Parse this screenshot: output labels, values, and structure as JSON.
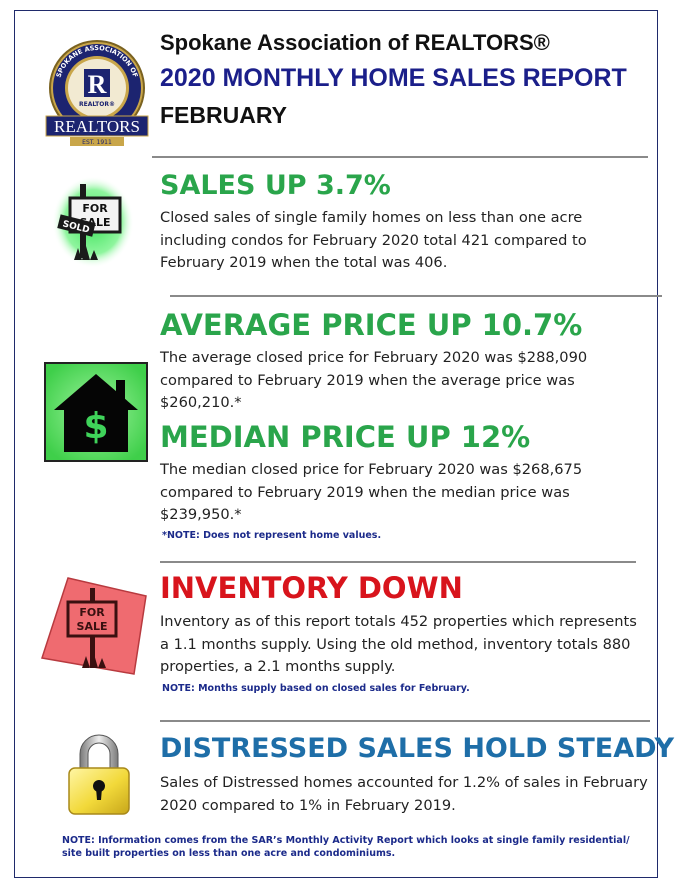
{
  "header": {
    "organization": "Spokane Association of REALTORS®",
    "report_title": "2020 MONTHLY HOME SALES REPORT",
    "month": "FEBRUARY"
  },
  "logo": {
    "ring_text": "SPOKANE ASSOCIATION OF",
    "center_letter": "R",
    "center_caption": "REALTOR®",
    "banner_text": "REALTORS",
    "est_text": "EST. 1911"
  },
  "icons": {
    "sold_sign": {
      "line1": "FOR",
      "line2": "SALE",
      "overlay": "SOLD"
    },
    "house": {
      "symbol": "$"
    },
    "for_sale": {
      "line1": "FOR",
      "line2": "SALE"
    }
  },
  "sections": {
    "sales": {
      "heading": "SALES UP 3.7%",
      "text": "Closed sales of single family homes on less than one acre including condos for February 2020 total 421 compared to February 2019 when the total was 406."
    },
    "average": {
      "heading": "AVERAGE PRICE UP 10.7%",
      "text": "The average closed price for February 2020 was $288,090 compared to February 2019 when the average price was $260,210.*"
    },
    "median": {
      "heading": "MEDIAN PRICE UP 12%",
      "text": "The median closed price for February 2020 was $268,675 compared to February 2019 when the median price was $239,950.*",
      "note": "*NOTE:  Does not represent home values."
    },
    "inventory": {
      "heading": "INVENTORY DOWN",
      "text": "Inventory as of this report totals 452 properties which represents a 1.1 months supply.  Using the old method, inventory totals 880 properties, a 2.1 months supply.",
      "note": "NOTE:  Months supply based on closed sales for February."
    },
    "distressed": {
      "heading": "DISTRESSED SALES HOLD STEADY",
      "text": "Sales of Distressed homes accounted for 1.2% of sales in February 2020 compared to 1% in February 2019."
    }
  },
  "footer": {
    "note": "NOTE:  Information comes from the SAR’s Monthly Activity Report which looks at single family residential/ site built properties on less than one acre and condominiums."
  },
  "colors": {
    "green_heading": "#2aa54b",
    "red_heading": "#d8141c",
    "blue_heading": "#1e6ea8",
    "navy_title": "#1b1f8a"
  }
}
